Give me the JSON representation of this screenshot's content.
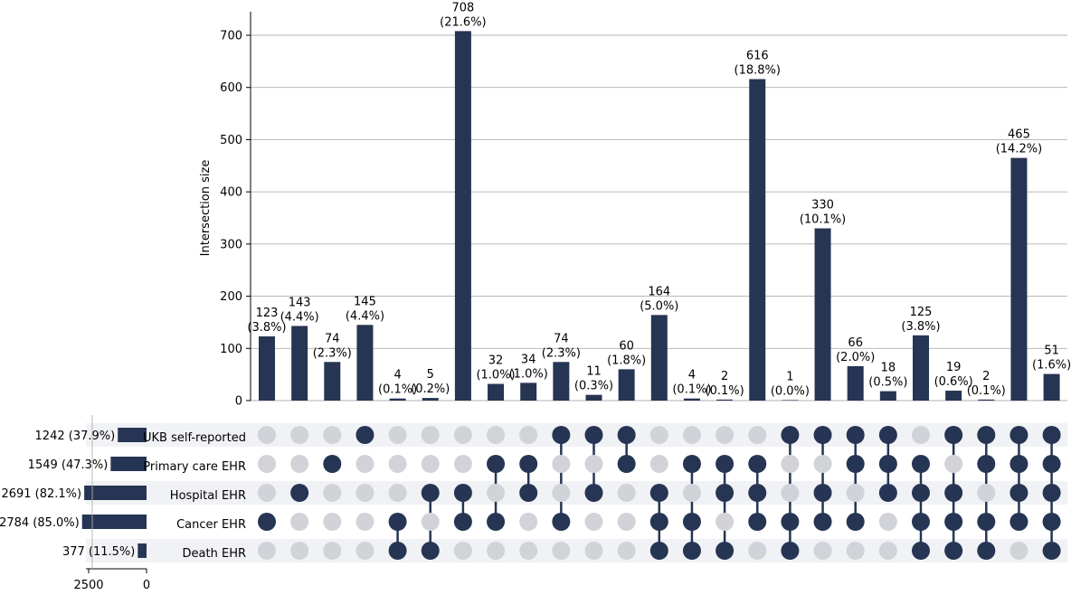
{
  "chart_data": {
    "type": "upset",
    "ylabel": "Intersection size",
    "y_ticks": [
      0,
      100,
      200,
      300,
      400,
      500,
      600,
      700
    ],
    "ylim": [
      0,
      740
    ],
    "grid": true,
    "set_size_axis_ticks": [
      2500,
      0
    ],
    "set_size_axis_max": 3000,
    "colors": {
      "bar": "#263553",
      "active_dot": "#263553",
      "inactive_dot": "#d1d3d9",
      "row_band": "#f1f2f5",
      "grid": "#b0b0b0"
    },
    "sets": [
      {
        "name": "UKB self-reported",
        "size": 1242,
        "label": "1242 (37.9%)"
      },
      {
        "name": "Primary care EHR",
        "size": 1549,
        "label": "1549 (47.3%)"
      },
      {
        "name": "Hospital EHR",
        "size": 2691,
        "label": "2691 (82.1%)"
      },
      {
        "name": "Cancer EHR",
        "size": 2784,
        "label": "2784 (85.0%)"
      },
      {
        "name": "Death EHR",
        "size": 377,
        "label": "377 (11.5%)"
      }
    ],
    "intersections": [
      {
        "value": 123,
        "count_label": "123",
        "pct_label": "(3.8%)",
        "members": [
          3
        ]
      },
      {
        "value": 143,
        "count_label": "143",
        "pct_label": "(4.4%)",
        "members": [
          2
        ]
      },
      {
        "value": 74,
        "count_label": "74",
        "pct_label": "(2.3%)",
        "members": [
          1
        ]
      },
      {
        "value": 145,
        "count_label": "145",
        "pct_label": "(4.4%)",
        "members": [
          0
        ]
      },
      {
        "value": 4,
        "count_label": "4",
        "pct_label": "(0.1%)",
        "members": [
          3,
          4
        ]
      },
      {
        "value": 5,
        "count_label": "5",
        "pct_label": "(0.2%)",
        "members": [
          2,
          4
        ]
      },
      {
        "value": 708,
        "count_label": "708",
        "pct_label": "(21.6%)",
        "members": [
          2,
          3
        ]
      },
      {
        "value": 32,
        "count_label": "32",
        "pct_label": "(1.0%)",
        "members": [
          1,
          3
        ]
      },
      {
        "value": 34,
        "count_label": "34",
        "pct_label": "(1.0%)",
        "members": [
          1,
          2
        ]
      },
      {
        "value": 74,
        "count_label": "74",
        "pct_label": "(2.3%)",
        "members": [
          0,
          3
        ]
      },
      {
        "value": 11,
        "count_label": "11",
        "pct_label": "(0.3%)",
        "members": [
          0,
          2
        ]
      },
      {
        "value": 60,
        "count_label": "60",
        "pct_label": "(1.8%)",
        "members": [
          0,
          1
        ]
      },
      {
        "value": 164,
        "count_label": "164",
        "pct_label": "(5.0%)",
        "members": [
          2,
          3,
          4
        ]
      },
      {
        "value": 4,
        "count_label": "4",
        "pct_label": "(0.1%)",
        "members": [
          1,
          3,
          4
        ]
      },
      {
        "value": 2,
        "count_label": "2",
        "pct_label": "(0.1%)",
        "members": [
          1,
          2,
          4
        ]
      },
      {
        "value": 616,
        "count_label": "616",
        "pct_label": "(18.8%)",
        "members": [
          1,
          2,
          3
        ]
      },
      {
        "value": 1,
        "count_label": "1",
        "pct_label": "(0.0%)",
        "members": [
          0,
          3,
          4
        ]
      },
      {
        "value": 330,
        "count_label": "330",
        "pct_label": "(10.1%)",
        "members": [
          0,
          2,
          3
        ]
      },
      {
        "value": 66,
        "count_label": "66",
        "pct_label": "(2.0%)",
        "members": [
          0,
          1,
          3
        ]
      },
      {
        "value": 18,
        "count_label": "18",
        "pct_label": "(0.5%)",
        "members": [
          0,
          1,
          2
        ]
      },
      {
        "value": 125,
        "count_label": "125",
        "pct_label": "(3.8%)",
        "members": [
          1,
          2,
          3,
          4
        ]
      },
      {
        "value": 19,
        "count_label": "19",
        "pct_label": "(0.6%)",
        "members": [
          0,
          2,
          3,
          4
        ]
      },
      {
        "value": 2,
        "count_label": "2",
        "pct_label": "(0.1%)",
        "members": [
          0,
          1,
          3,
          4
        ]
      },
      {
        "value": 465,
        "count_label": "465",
        "pct_label": "(14.2%)",
        "members": [
          0,
          1,
          2,
          3
        ]
      },
      {
        "value": 51,
        "count_label": "51",
        "pct_label": "(1.6%)",
        "members": [
          0,
          1,
          2,
          3,
          4
        ]
      }
    ]
  }
}
